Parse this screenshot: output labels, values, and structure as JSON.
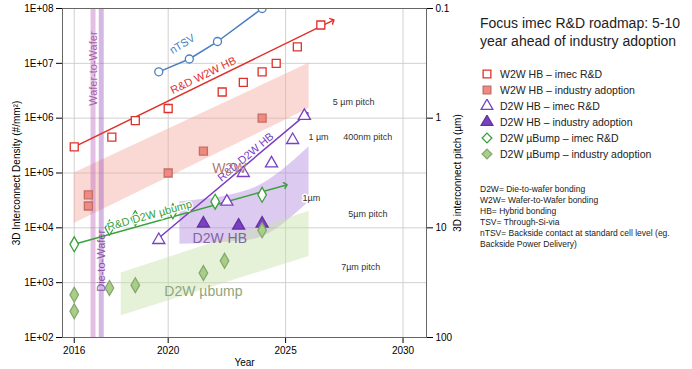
{
  "chart_data": {
    "type": "scatter",
    "title": "Focus imec R&D roadmap: 5-10 year ahead of industry adoption",
    "x_label": "Year",
    "y_label": "3D Interconnect Density (#/mm²)",
    "y2_label": "3D interconnect pitch (µm)",
    "log": "y",
    "grid": true,
    "legend": "right",
    "xlim": [
      2015.5,
      2031
    ],
    "xticks": [
      2016,
      2020,
      2025,
      2030
    ],
    "ylim": [
      100,
      100000000
    ],
    "yticks": [
      {
        "value": 100,
        "label": "1E+02"
      },
      {
        "value": 1000,
        "label": "1E+03"
      },
      {
        "value": 10000,
        "label": "1E+04"
      },
      {
        "value": 100000,
        "label": "1E+05"
      },
      {
        "value": 1000000,
        "label": "1E+06"
      },
      {
        "value": 10000000,
        "label": "1E+07"
      },
      {
        "value": 100000000,
        "label": "1E+08"
      }
    ],
    "y2lim": [
      100,
      0.1
    ],
    "y2ticks": [
      0.1,
      1,
      10,
      100
    ],
    "series": [
      {
        "name": "W2W HB – imec R&D",
        "color": "#e0302a",
        "marker": "square-open",
        "x": [
          2016,
          2017.6,
          2018.6,
          2020,
          2022.3,
          2023.2,
          2024,
          2024.6,
          2025.5,
          2026.5
        ],
        "values": [
          300000,
          450000,
          900000,
          1500000,
          3000000,
          4500000,
          7000000,
          10000000,
          20000000,
          50000000
        ]
      },
      {
        "name": "W2W HB – industry adoption",
        "color": "#f08a80",
        "marker": "square",
        "x": [
          2016.6,
          2016.6,
          2020,
          2021.5,
          2024
        ],
        "values": [
          25000,
          40000,
          100000,
          250000,
          1000000
        ]
      },
      {
        "name": "D2W HB – imec R&D",
        "color": "#7a3fc2",
        "marker": "triangle-open",
        "x": [
          2019.6,
          2022.5,
          2023.2,
          2024.4,
          2025.3,
          2025.8
        ],
        "values": [
          6000,
          30000,
          100000,
          150000,
          400000,
          1100000
        ]
      },
      {
        "name": "D2W HB – industry adoption",
        "color": "#7a3fc2",
        "marker": "triangle",
        "x": [
          2021.5,
          2023,
          2024
        ],
        "values": [
          12000,
          11000,
          12000
        ]
      },
      {
        "name": "D2W µBump – imec R&D",
        "color": "#3aa13a",
        "marker": "diamond-open",
        "x": [
          2016,
          2017.5,
          2018.6,
          2020.2,
          2022,
          2024
        ],
        "values": [
          5000,
          10000,
          15000,
          20000,
          30000,
          40000
        ]
      },
      {
        "name": "D2W µBump – industry adoption",
        "color": "#a8cf88",
        "marker": "diamond",
        "x": [
          2016,
          2016,
          2017.5,
          2018.6,
          2021.5,
          2022.4,
          2024
        ],
        "values": [
          300,
          600,
          800,
          900,
          1500,
          2500,
          9000
        ]
      }
    ],
    "trends": [
      {
        "name": "nTSV",
        "color": "#4a7fc0",
        "marker": "circle-open",
        "x": [
          2019.6,
          2020.9,
          2022.1,
          2024
        ],
        "values": [
          7000000,
          12000000,
          25000000,
          100000000
        ],
        "label_at": [
          2020.6,
          16000000
        ]
      },
      {
        "name": "R&D W2W HB",
        "color": "#e0302a",
        "marker": "none",
        "x": [
          2016,
          2027
        ],
        "values": [
          300000,
          60000000
        ],
        "label_at": [
          2021.5,
          4300000
        ]
      },
      {
        "name": "R&D D2W HB",
        "color": "#7a3fc2",
        "marker": "none",
        "x": [
          2019.5,
          2025.9
        ],
        "values": [
          6000,
          1200000
        ],
        "label_at": [
          2023.3,
          140000
        ]
      },
      {
        "name": "R&D D2W µbump",
        "color": "#3aa13a",
        "marker": "none",
        "x": [
          2016,
          2025
        ],
        "values": [
          5000,
          60000
        ],
        "label_at": [
          2019.2,
          12000
        ]
      }
    ],
    "bands": [
      {
        "name": "W2W",
        "color": "#f4a9a0",
        "x": [
          2016,
          2026
        ],
        "lower": [
          12000,
          1500000
        ],
        "upper": [
          100000,
          10000000
        ],
        "label_at": [
          2022.6,
          120000
        ]
      },
      {
        "name": "D2W HB",
        "color": "#b38ae0",
        "x": [
          2020.5,
          2023.5,
          2026
        ],
        "lower": [
          5000,
          6000,
          30000
        ],
        "upper": [
          30000,
          50000,
          300000
        ],
        "label_at": [
          2022.2,
          6500
        ]
      },
      {
        "name": "D2W µbump",
        "color": "#c5e3a8",
        "x": [
          2018,
          2026
        ],
        "lower": [
          250,
          3000
        ],
        "upper": [
          1500,
          20000
        ],
        "label_at": [
          2021.5,
          700
        ]
      }
    ],
    "vertical_labels": [
      {
        "text": "Wafer-to-Wafer",
        "x": 2016.8,
        "y": 8000000,
        "color": "#c070c0"
      },
      {
        "text": "Die-to-Wafer",
        "x": 2017.15,
        "y": 2500,
        "color": "#a060c0"
      }
    ],
    "photo_labels": [
      {
        "text": "1 µm",
        "x": 2026.4,
        "y": 450000
      },
      {
        "text": "400nm pitch",
        "x": 2028.5,
        "y": 450000
      },
      {
        "text": "5 µm pitch",
        "x": 2027.9,
        "y": 2000000
      },
      {
        "text": "1µm",
        "x": 2026.1,
        "y": 35000
      },
      {
        "text": "5µm pitch",
        "x": 2028.5,
        "y": 18000
      },
      {
        "text": "7µm pitch",
        "x": 2028.2,
        "y": 1900
      }
    ],
    "footnotes": [
      "D2W= Die-to-wafer bonding",
      "W2W= Wafer-to-Wafer bonding",
      "HB= Hybrid bonding",
      "TSV= Through-Si-via",
      "nTSV= Backside contact at standard cell level (eg. Backside Power Delivery)"
    ]
  }
}
